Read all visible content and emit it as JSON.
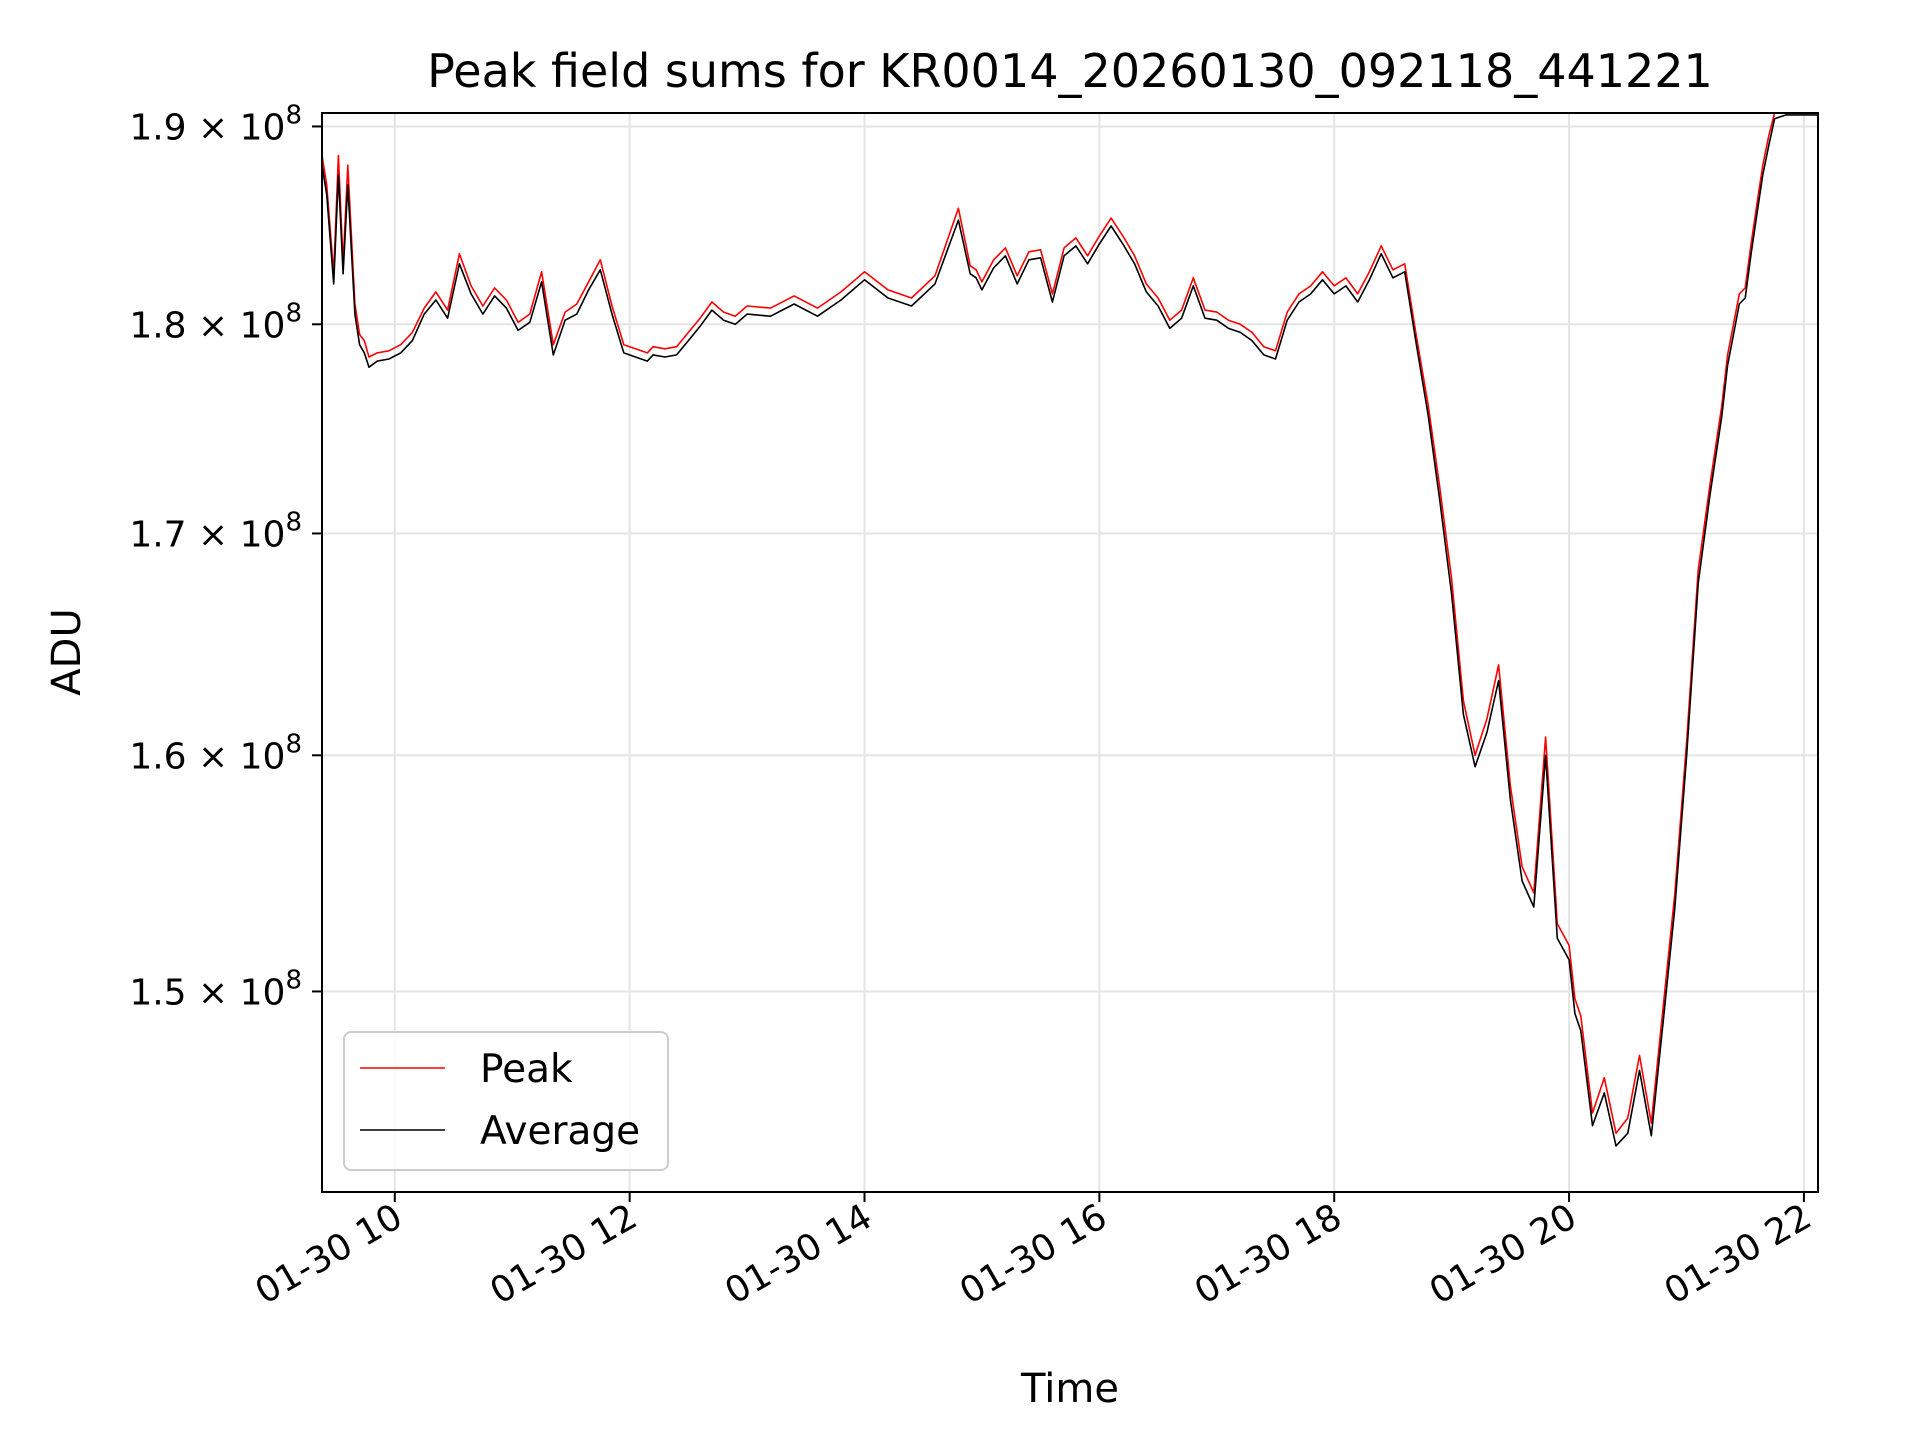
{
  "chart_data": {
    "type": "line",
    "title": "Peak field sums for KR0014_20260130_092118_441221",
    "xlabel": "Time",
    "ylabel": "ADU",
    "x_unit": "hour of 01-30",
    "xlim": [
      9.38,
      22.12
    ],
    "ylim": [
      142000000,
      190700000
    ],
    "x_ticks": [
      10,
      12,
      14,
      16,
      18,
      20,
      22
    ],
    "x_tick_labels": [
      "01-30 10",
      "01-30 12",
      "01-30 14",
      "01-30 16",
      "01-30 18",
      "01-30 20",
      "01-30 22"
    ],
    "y_ticks": [
      150000000,
      160000000,
      170000000,
      180000000,
      190000000
    ],
    "y_tick_labels": [
      {
        "mantissa": "1.5",
        "exp": "8"
      },
      {
        "mantissa": "1.6",
        "exp": "8"
      },
      {
        "mantissa": "1.7",
        "exp": "8"
      },
      {
        "mantissa": "1.8",
        "exp": "8"
      },
      {
        "mantissa": "1.9",
        "exp": "8"
      }
    ],
    "y_tick_base": "10",
    "y_scale": "log",
    "grid": true,
    "legend_position": "lower-left",
    "series": [
      {
        "name": "Peak",
        "color": "#ff0000",
        "x": [
          9.38,
          9.42,
          9.48,
          9.52,
          9.56,
          9.6,
          9.66,
          9.7,
          9.74,
          9.78,
          9.85,
          9.95,
          10.05,
          10.15,
          10.25,
          10.35,
          10.45,
          10.55,
          10.65,
          10.75,
          10.85,
          10.95,
          11.05,
          11.15,
          11.25,
          11.35,
          11.45,
          11.55,
          11.65,
          11.75,
          11.85,
          11.95,
          12.05,
          12.15,
          12.2,
          12.3,
          12.4,
          12.5,
          12.6,
          12.7,
          12.8,
          12.9,
          13.0,
          13.2,
          13.4,
          13.6,
          13.8,
          14.0,
          14.2,
          14.4,
          14.6,
          14.8,
          14.9,
          14.95,
          15.0,
          15.1,
          15.2,
          15.3,
          15.4,
          15.5,
          15.6,
          15.7,
          15.8,
          15.9,
          16.0,
          16.1,
          16.2,
          16.3,
          16.4,
          16.5,
          16.6,
          16.7,
          16.8,
          16.9,
          17.0,
          17.1,
          17.2,
          17.3,
          17.4,
          17.5,
          17.6,
          17.7,
          17.8,
          17.9,
          18.0,
          18.1,
          18.2,
          18.3,
          18.4,
          18.5,
          18.6,
          18.7,
          18.8,
          18.9,
          19.0,
          19.1,
          19.2,
          19.3,
          19.4,
          19.5,
          19.6,
          19.7,
          19.8,
          19.9,
          20.0,
          20.05,
          20.1,
          20.2,
          20.3,
          20.4,
          20.5,
          20.6,
          20.7,
          20.8,
          20.9,
          21.0,
          21.1,
          21.2,
          21.3,
          21.35,
          21.4,
          21.45,
          21.5,
          21.55,
          21.6,
          21.65,
          21.7,
          21.75,
          21.8,
          21.85,
          21.9,
          21.95,
          22.0,
          22.05,
          22.1,
          22.12
        ],
        "y": [
          188500000,
          187000000,
          182500000,
          188500000,
          183000000,
          188000000,
          181000000,
          179500000,
          179200000,
          178400000,
          178600000,
          178700000,
          179000000,
          179600000,
          180800000,
          181600000,
          180700000,
          183500000,
          181900000,
          180900000,
          181800000,
          181200000,
          180100000,
          180500000,
          182600000,
          179000000,
          180600000,
          181000000,
          182100000,
          183200000,
          180900000,
          179000000,
          178800000,
          178600000,
          178900000,
          178800000,
          178900000,
          179600000,
          180300000,
          181100000,
          180600000,
          180400000,
          180900000,
          180800000,
          181400000,
          180800000,
          181600000,
          182600000,
          181700000,
          181300000,
          182400000,
          185800000,
          182900000,
          182700000,
          182100000,
          183200000,
          183800000,
          182400000,
          183600000,
          183700000,
          181500000,
          183800000,
          184300000,
          183400000,
          184400000,
          185300000,
          184400000,
          183400000,
          182000000,
          181300000,
          180200000,
          180700000,
          182300000,
          180700000,
          180600000,
          180200000,
          180000000,
          179600000,
          178900000,
          178700000,
          180600000,
          181500000,
          181900000,
          182600000,
          181900000,
          182300000,
          181500000,
          182600000,
          183900000,
          182700000,
          183000000,
          179400000,
          176100000,
          172100000,
          167900000,
          162400000,
          160000000,
          161600000,
          164000000,
          158700000,
          155200000,
          154100000,
          160800000,
          152800000,
          151900000,
          149700000,
          149000000,
          145100000,
          146500000,
          144300000,
          144900000,
          147400000,
          144700000,
          149300000,
          154000000,
          160500000,
          168300000,
          172300000,
          176000000,
          178500000,
          180000000,
          181500000,
          181800000,
          184000000,
          186000000,
          188000000,
          189500000,
          190700000,
          190700000,
          190700000,
          190700000,
          190700000,
          190700000,
          190700000,
          190700000,
          190700000
        ]
      },
      {
        "name": "Average",
        "color": "#000000",
        "x": [
          9.38,
          9.42,
          9.48,
          9.52,
          9.56,
          9.6,
          9.66,
          9.7,
          9.74,
          9.78,
          9.85,
          9.95,
          10.05,
          10.15,
          10.25,
          10.35,
          10.45,
          10.55,
          10.65,
          10.75,
          10.85,
          10.95,
          11.05,
          11.15,
          11.25,
          11.35,
          11.45,
          11.55,
          11.65,
          11.75,
          11.85,
          11.95,
          12.05,
          12.15,
          12.2,
          12.3,
          12.4,
          12.5,
          12.6,
          12.7,
          12.8,
          12.9,
          13.0,
          13.2,
          13.4,
          13.6,
          13.8,
          14.0,
          14.2,
          14.4,
          14.6,
          14.8,
          14.9,
          14.95,
          15.0,
          15.1,
          15.2,
          15.3,
          15.4,
          15.5,
          15.6,
          15.7,
          15.8,
          15.9,
          16.0,
          16.1,
          16.2,
          16.3,
          16.4,
          16.5,
          16.6,
          16.7,
          16.8,
          16.9,
          17.0,
          17.1,
          17.2,
          17.3,
          17.4,
          17.5,
          17.6,
          17.7,
          17.8,
          17.9,
          18.0,
          18.1,
          18.2,
          18.3,
          18.4,
          18.5,
          18.6,
          18.7,
          18.8,
          18.9,
          19.0,
          19.1,
          19.2,
          19.3,
          19.4,
          19.5,
          19.6,
          19.7,
          19.8,
          19.9,
          20.0,
          20.05,
          20.1,
          20.2,
          20.3,
          20.4,
          20.5,
          20.6,
          20.7,
          20.8,
          20.9,
          21.0,
          21.1,
          21.2,
          21.3,
          21.35,
          21.4,
          21.45,
          21.5,
          21.55,
          21.6,
          21.65,
          21.7,
          21.75,
          21.8,
          21.85,
          21.9,
          21.95,
          22.0,
          22.05,
          22.1,
          22.12
        ],
        "y": [
          188000000,
          186500000,
          182000000,
          187500000,
          182500000,
          187000000,
          180500000,
          179000000,
          178600000,
          177900000,
          178200000,
          178300000,
          178600000,
          179200000,
          180500000,
          181200000,
          180300000,
          183000000,
          181500000,
          180500000,
          181400000,
          180800000,
          179700000,
          180100000,
          182100000,
          178500000,
          180200000,
          180500000,
          181700000,
          182700000,
          180500000,
          178600000,
          178400000,
          178200000,
          178500000,
          178400000,
          178500000,
          179200000,
          179900000,
          180700000,
          180200000,
          180000000,
          180500000,
          180400000,
          181000000,
          180400000,
          181200000,
          182200000,
          181300000,
          180900000,
          182000000,
          185200000,
          182500000,
          182300000,
          181700000,
          182800000,
          183400000,
          182000000,
          183200000,
          183300000,
          181100000,
          183400000,
          183900000,
          183000000,
          184000000,
          184900000,
          184000000,
          183000000,
          181600000,
          180900000,
          179800000,
          180300000,
          181900000,
          180300000,
          180200000,
          179800000,
          179600000,
          179200000,
          178500000,
          178300000,
          180200000,
          181100000,
          181500000,
          182200000,
          181500000,
          181900000,
          181100000,
          182200000,
          183500000,
          182300000,
          182600000,
          179000000,
          175600000,
          171500000,
          167200000,
          161800000,
          159500000,
          161000000,
          163300000,
          158100000,
          154600000,
          153500000,
          160000000,
          152200000,
          151300000,
          149100000,
          148400000,
          144600000,
          145900000,
          143800000,
          144300000,
          146800000,
          144200000,
          148700000,
          153400000,
          159900000,
          167700000,
          171800000,
          175500000,
          178000000,
          179500000,
          181000000,
          181300000,
          183500000,
          185500000,
          187500000,
          189000000,
          190400000,
          190500000,
          190600000,
          190600000,
          190600000,
          190600000,
          190600000,
          190600000,
          190600000
        ]
      }
    ]
  }
}
